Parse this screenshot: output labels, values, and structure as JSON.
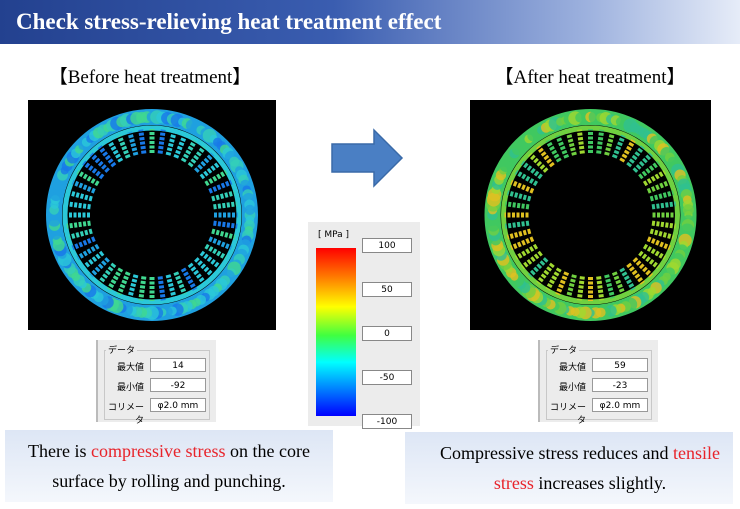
{
  "header": {
    "title": "Check stress-relieving heat treatment effect"
  },
  "panels": [
    {
      "label": "【Before heat treatment】",
      "data": {
        "heading": "データ",
        "rows": [
          {
            "label": "最大値",
            "value": 14
          },
          {
            "label": "最小値",
            "value": -92
          },
          {
            "label": "コリメータ",
            "value": "φ2.0 mm"
          }
        ]
      },
      "caption": [
        {
          "text": "There is "
        },
        {
          "text": "compressive stress",
          "highlight": true
        },
        {
          "text": " on the core surface by rolling and punching."
        }
      ]
    },
    {
      "label": "【After heat treatment】",
      "data": {
        "heading": "データ",
        "rows": [
          {
            "label": "最大値",
            "value": 59
          },
          {
            "label": "最小値",
            "value": -23
          },
          {
            "label": "コリメータ",
            "value": "φ2.0 mm"
          }
        ]
      },
      "caption": [
        {
          "text": "Compressive stress reduces and "
        },
        {
          "text": "tensile stress",
          "highlight": true
        },
        {
          "text": " increases slightly."
        }
      ]
    }
  ],
  "colorbar": {
    "unit": "[ MPa ]",
    "ticks": [
      100,
      50,
      0,
      -50,
      -100
    ]
  }
}
